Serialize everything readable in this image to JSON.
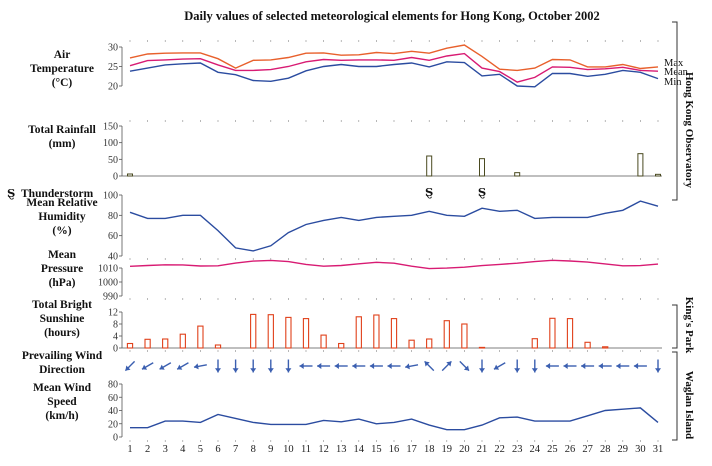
{
  "title": "Daily values of selected meteorological elements for Hong Kong, October 2002",
  "side_labels": {
    "observatory": "Hong Kong Observatory",
    "kings_park": "King's Park",
    "waglan": "Waglan Island"
  },
  "thunder_symbol": "Ȿ",
  "colors": {
    "max": "#e8602c",
    "mean_temp": "#d81b73",
    "min": "#2b4ca0",
    "rain_bar": "#4a4a20",
    "sunshine_bar": "#e0401a",
    "wind_arrow": "#3b5fb0",
    "line_blue": "#2b4ca0",
    "pressure": "#d81b73"
  },
  "chart_data": [
    {
      "id": "temperature",
      "type": "line",
      "ylabel": "Air Temperature (°C)",
      "ylabel_lines": [
        "Air",
        "Temperature",
        "(°C)"
      ],
      "ylim": [
        20,
        30
      ],
      "yticks": [
        20,
        25,
        30
      ],
      "x": [
        1,
        2,
        3,
        4,
        5,
        6,
        7,
        8,
        9,
        10,
        11,
        12,
        13,
        14,
        15,
        16,
        17,
        18,
        19,
        20,
        21,
        22,
        23,
        24,
        25,
        26,
        27,
        28,
        29,
        30,
        31
      ],
      "series": [
        {
          "name": "Max",
          "values": [
            27.2,
            28.2,
            28.4,
            28.5,
            28.5,
            27.0,
            24.6,
            26.6,
            26.7,
            27.3,
            28.4,
            28.5,
            27.9,
            28.0,
            28.6,
            28.3,
            28.9,
            28.4,
            29.7,
            30.5,
            27.6,
            24.3,
            24.0,
            24.6,
            26.8,
            26.7,
            24.9,
            24.9,
            25.5,
            24.5,
            24.9
          ]
        },
        {
          "name": "Mean",
          "values": [
            25.2,
            26.5,
            26.7,
            26.9,
            27.0,
            25.4,
            24.0,
            24.0,
            24.2,
            25.0,
            26.2,
            26.8,
            26.6,
            26.7,
            26.7,
            26.6,
            27.3,
            26.6,
            27.7,
            28.3,
            24.6,
            23.7,
            21.0,
            22.2,
            24.9,
            24.8,
            24.2,
            24.4,
            24.8,
            24.0,
            23.8
          ]
        },
        {
          "name": "Min",
          "values": [
            23.8,
            24.6,
            25.4,
            25.7,
            25.9,
            23.5,
            22.9,
            21.4,
            21.2,
            22.0,
            23.9,
            25.0,
            25.5,
            25.0,
            25.0,
            25.5,
            25.9,
            24.9,
            26.2,
            26.0,
            22.6,
            23.0,
            20.0,
            19.8,
            23.2,
            23.2,
            22.5,
            23.0,
            24.0,
            23.5,
            21.9
          ]
        }
      ]
    },
    {
      "id": "rainfall",
      "type": "bar",
      "ylabel": "Total Rainfall (mm)",
      "ylabel_lines": [
        "Total Rainfall",
        "(mm)"
      ],
      "ylim": [
        0,
        150
      ],
      "yticks": [
        0,
        50,
        100,
        150
      ],
      "x": [
        1,
        2,
        3,
        4,
        5,
        6,
        7,
        8,
        9,
        10,
        11,
        12,
        13,
        14,
        15,
        16,
        17,
        18,
        19,
        20,
        21,
        22,
        23,
        24,
        25,
        26,
        27,
        28,
        29,
        30,
        31
      ],
      "values": [
        6,
        0,
        0,
        0,
        0,
        0,
        0,
        0,
        0,
        0,
        0,
        0,
        0,
        0,
        0,
        0,
        0,
        60,
        0,
        0,
        52,
        0,
        10,
        0,
        0,
        0,
        0,
        0,
        0,
        67,
        5
      ]
    },
    {
      "id": "thunderstorm",
      "type": "scatter",
      "ylabel": "Thunderstorm",
      "days": [
        18,
        21
      ]
    },
    {
      "id": "humidity",
      "type": "line",
      "ylabel": "Mean Relative Humidity (%)",
      "ylabel_lines": [
        "Mean Relative",
        "Humidity",
        "(%)"
      ],
      "ylim": [
        40,
        100
      ],
      "yticks": [
        40,
        60,
        80,
        100
      ],
      "x": [
        1,
        2,
        3,
        4,
        5,
        6,
        7,
        8,
        9,
        10,
        11,
        12,
        13,
        14,
        15,
        16,
        17,
        18,
        19,
        20,
        21,
        22,
        23,
        24,
        25,
        26,
        27,
        28,
        29,
        30,
        31
      ],
      "values": [
        83,
        77,
        77,
        80,
        80,
        65,
        48,
        45,
        50,
        63,
        71,
        75,
        78,
        75,
        78,
        79,
        80,
        84,
        80,
        79,
        87,
        84,
        85,
        77,
        78,
        78,
        78,
        82,
        85,
        94,
        89
      ]
    },
    {
      "id": "pressure",
      "type": "line",
      "ylabel": "Mean Pressure (hPa)",
      "ylabel_lines": [
        "Mean",
        "Pressure",
        "(hPa)"
      ],
      "ylim": [
        990,
        1010
      ],
      "yticks": [
        990,
        1000,
        1010
      ],
      "x": [
        1,
        2,
        3,
        4,
        5,
        6,
        7,
        8,
        9,
        10,
        11,
        12,
        13,
        14,
        15,
        16,
        17,
        18,
        19,
        20,
        21,
        22,
        23,
        24,
        25,
        26,
        27,
        28,
        29,
        30,
        31
      ],
      "values": [
        1011.2,
        1011.8,
        1012.3,
        1012.2,
        1011.4,
        1011.6,
        1013.5,
        1014.9,
        1015.4,
        1014.6,
        1012.6,
        1011.3,
        1011.8,
        1013.0,
        1014.1,
        1013.4,
        1011.3,
        1009.6,
        1009.9,
        1010.6,
        1011.7,
        1012.6,
        1013.4,
        1014.6,
        1015.5,
        1015.0,
        1014.2,
        1012.9,
        1011.6,
        1011.7,
        1012.8
      ]
    },
    {
      "id": "sunshine",
      "type": "bar",
      "ylabel": "Total Bright Sunshine (hours)",
      "ylabel_lines": [
        "Total Bright",
        "Sunshine",
        "(hours)"
      ],
      "ylim": [
        0,
        12
      ],
      "yticks": [
        0,
        4,
        8,
        12
      ],
      "x": [
        1,
        2,
        3,
        4,
        5,
        6,
        7,
        8,
        9,
        10,
        11,
        12,
        13,
        14,
        15,
        16,
        17,
        18,
        19,
        20,
        21,
        22,
        23,
        24,
        25,
        26,
        27,
        28,
        29,
        30,
        31
      ],
      "values": [
        1.5,
        2.9,
        3.0,
        4.6,
        7.3,
        1.0,
        0,
        11.2,
        11.1,
        10.2,
        9.8,
        4.3,
        1.5,
        10.4,
        11.0,
        9.8,
        2.6,
        3.0,
        9.1,
        8.0,
        0.2,
        0,
        0,
        3.1,
        9.9,
        9.8,
        1.9,
        0.4,
        0,
        0,
        0
      ]
    },
    {
      "id": "wind_direction",
      "type": "scatter",
      "ylabel": "Prevailing Wind Direction",
      "ylabel_lines": [
        "Prevailing Wind",
        "Direction"
      ],
      "x": [
        1,
        2,
        3,
        4,
        5,
        6,
        7,
        8,
        9,
        10,
        11,
        12,
        13,
        14,
        15,
        16,
        17,
        18,
        19,
        20,
        21,
        22,
        23,
        24,
        25,
        26,
        27,
        28,
        29,
        30,
        31
      ],
      "direction_from_deg": [
        45,
        60,
        60,
        60,
        80,
        0,
        0,
        0,
        0,
        0,
        90,
        90,
        90,
        90,
        90,
        90,
        80,
        135,
        225,
        315,
        0,
        60,
        0,
        0,
        90,
        90,
        90,
        90,
        90,
        90,
        0
      ]
    },
    {
      "id": "wind_speed",
      "type": "line",
      "ylabel": "Mean Wind Speed (km/h)",
      "ylabel_lines": [
        "Mean Wind",
        "Speed",
        "(km/h)"
      ],
      "ylim": [
        0,
        80
      ],
      "yticks": [
        0,
        20,
        40,
        60,
        80
      ],
      "x": [
        1,
        2,
        3,
        4,
        5,
        6,
        7,
        8,
        9,
        10,
        11,
        12,
        13,
        14,
        15,
        16,
        17,
        18,
        19,
        20,
        21,
        22,
        23,
        24,
        25,
        26,
        27,
        28,
        29,
        30,
        31
      ],
      "values": [
        14,
        14,
        24,
        24,
        22,
        34,
        28,
        22,
        19,
        19,
        19,
        25,
        23,
        27,
        20,
        22,
        27,
        18,
        11,
        11,
        18,
        29,
        30,
        24,
        24,
        24,
        32,
        40,
        42,
        44,
        22
      ]
    }
  ],
  "xaxis": {
    "tick_labels": [
      "1",
      "2",
      "3",
      "4",
      "5",
      "6",
      "7",
      "8",
      "9",
      "10",
      "11",
      "12",
      "13",
      "14",
      "15",
      "16",
      "17",
      "18",
      "19",
      "20",
      "21",
      "22",
      "23",
      "24",
      "25",
      "26",
      "27",
      "28",
      "29",
      "30",
      "31"
    ]
  }
}
